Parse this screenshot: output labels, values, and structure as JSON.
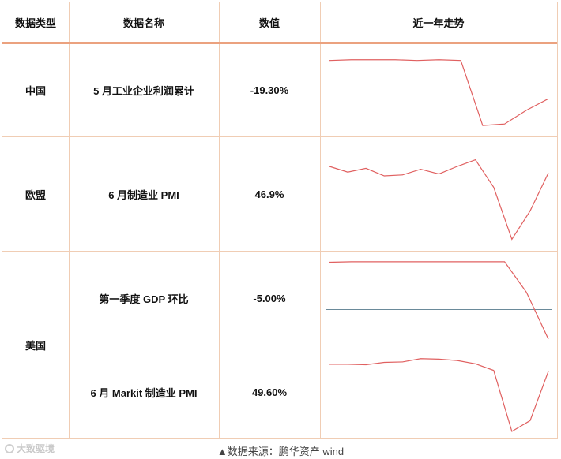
{
  "table": {
    "headers": [
      "数据类型",
      "数据名称",
      "数值",
      "近一年走势"
    ],
    "rows": [
      {
        "region": "中国",
        "name": "5 月工业企业利润累计",
        "value": "-19.30%"
      },
      {
        "region": "欧盟",
        "name": "6 月制造业 PMI",
        "value": "46.9%"
      },
      {
        "region": "美国",
        "name": "第一季度 GDP 环比",
        "value": "-5.00%"
      },
      {
        "region": "美国",
        "name": "6 月 Markit 制造业 PMI",
        "value": "49.60%"
      }
    ]
  },
  "chart_data": [
    {
      "type": "line",
      "series": [
        {
          "values": [
            0.9,
            0.91,
            0.91,
            0.91,
            0.9,
            0.91,
            0.9,
            0.05,
            0.07,
            0.25,
            0.4
          ]
        }
      ],
      "line_color": "#e06060"
    },
    {
      "type": "line",
      "series": [
        {
          "values": [
            0.8,
            0.74,
            0.78,
            0.7,
            0.71,
            0.77,
            0.72,
            0.8,
            0.87,
            0.58,
            0.03,
            0.33,
            0.73
          ]
        }
      ],
      "line_color": "#e06060"
    },
    {
      "type": "line",
      "series": [
        {
          "values": [
            0.96,
            0.97,
            0.97,
            0.97,
            0.97,
            0.97,
            0.97,
            0.97,
            0.97,
            0.35,
            -0.6
          ]
        }
      ],
      "zero_line": true,
      "line_color": "#e06060"
    },
    {
      "type": "line",
      "series": [
        {
          "values": [
            0.8,
            0.8,
            0.79,
            0.84,
            0.85,
            0.92,
            0.91,
            0.88,
            0.81,
            0.67,
            -0.63,
            -0.4,
            0.65
          ]
        }
      ],
      "line_color": "#e06060"
    }
  ],
  "footer": {
    "source": "▲数据来源：鹏华资产  wind",
    "watermark": "大致驱境"
  }
}
